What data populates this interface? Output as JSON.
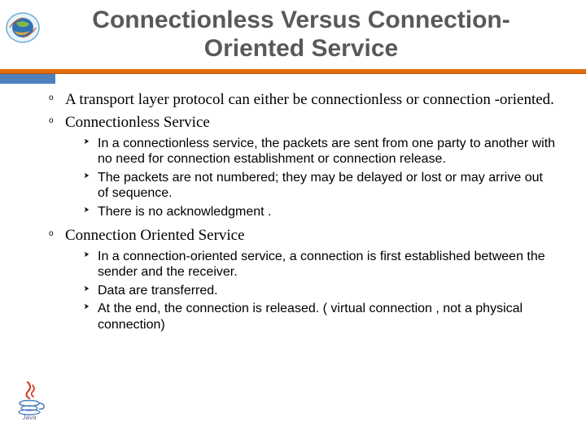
{
  "title": {
    "text": "Connectionless Versus Connection-Oriented Service",
    "fontsize": 30,
    "color": "#595959"
  },
  "accent": {
    "blue": "#4f81bd",
    "orange": "#e46c0a"
  },
  "body": {
    "lvl1_fontsize": 19,
    "lvl2_fontsize": 16,
    "items": [
      {
        "text": "A transport layer protocol can either be connectionless or connection -oriented.",
        "sub": []
      },
      {
        "text": "Connectionless Service",
        "sub": [
          " In a connectionless service, the packets are sent from one party to another with no need for connection establishment or connection release.",
          "The packets are not numbered; they may be delayed or lost or may arrive out of sequence.",
          "There is no acknowledgment ."
        ]
      },
      {
        "text": "Connection Oriented Service",
        "sub": [
          "In a connection-oriented service, a connection is first established between the sender and the receiver.",
          "Data are transferred.",
          "At the end, the connection is released. ( virtual connection , not a physical connection)"
        ]
      }
    ]
  },
  "logos": {
    "globe_colors": {
      "ring": "#6faed8",
      "land_top": "#7fb84f",
      "ocean": "#2e74b5",
      "land_low": "#d4a340",
      "accent": "#c94f2e"
    },
    "java_colors": {
      "cup": "#4f81bd",
      "steam": "#d8402a",
      "text": "#5a6b8c"
    },
    "java_label": "Java"
  },
  "background_color": "#ffffff"
}
